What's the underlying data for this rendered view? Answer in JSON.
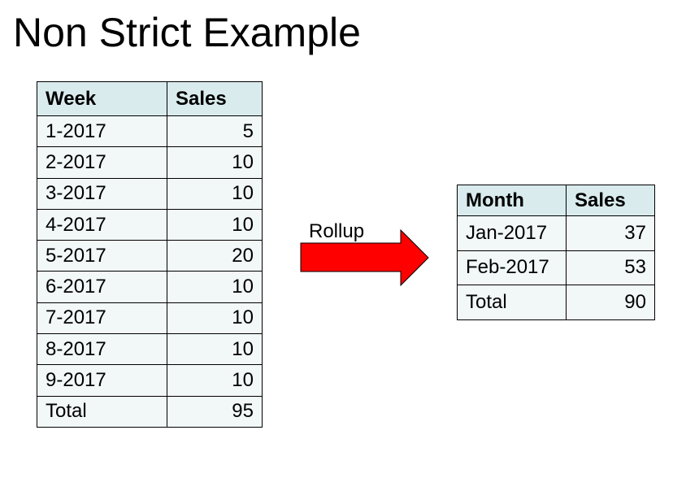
{
  "title": "Non Strict Example",
  "weekly_table": {
    "headers": [
      "Week",
      "Sales"
    ],
    "rows": [
      [
        "1-2017",
        "5"
      ],
      [
        "2-2017",
        "10"
      ],
      [
        "3-2017",
        "10"
      ],
      [
        "4-2017",
        "10"
      ],
      [
        "5-2017",
        "20"
      ],
      [
        "6-2017",
        "10"
      ],
      [
        "7-2017",
        "10"
      ],
      [
        "8-2017",
        "10"
      ],
      [
        "9-2017",
        "10"
      ],
      [
        "Total",
        "95"
      ]
    ]
  },
  "arrow": {
    "label": "Rollup",
    "color": "#ff0000"
  },
  "monthly_table": {
    "headers": [
      "Month",
      "Sales"
    ],
    "rows": [
      [
        "Jan-2017",
        "37"
      ],
      [
        "Feb-2017",
        "53"
      ],
      [
        "Total",
        "90"
      ]
    ]
  }
}
